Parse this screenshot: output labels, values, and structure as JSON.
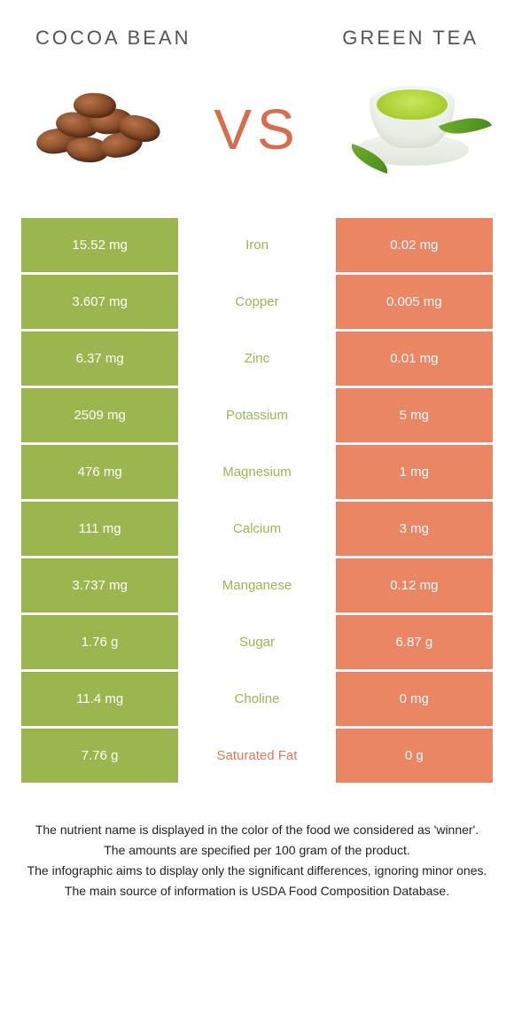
{
  "header": {
    "left_title": "Cocoa bean",
    "right_title": "Green tea"
  },
  "vs_label": "VS",
  "colors": {
    "cocoa": "#9cb64f",
    "green_tea": "#ea8664",
    "nutrient_cocoa_win": "#9cb64f",
    "nutrient_tea_win": "#e07a56",
    "background": "#ffffff"
  },
  "rows": [
    {
      "left": "15.52 mg",
      "nutrient": "Iron",
      "right": "0.02 mg",
      "winner": "cocoa"
    },
    {
      "left": "3.607 mg",
      "nutrient": "Copper",
      "right": "0.005 mg",
      "winner": "cocoa"
    },
    {
      "left": "6.37 mg",
      "nutrient": "Zinc",
      "right": "0.01 mg",
      "winner": "cocoa"
    },
    {
      "left": "2509 mg",
      "nutrient": "Potassium",
      "right": "5 mg",
      "winner": "cocoa"
    },
    {
      "left": "476 mg",
      "nutrient": "Magnesium",
      "right": "1 mg",
      "winner": "cocoa"
    },
    {
      "left": "111 mg",
      "nutrient": "Calcium",
      "right": "3 mg",
      "winner": "cocoa"
    },
    {
      "left": "3.737 mg",
      "nutrient": "Manganese",
      "right": "0.12 mg",
      "winner": "cocoa"
    },
    {
      "left": "1.76 g",
      "nutrient": "Sugar",
      "right": "6.87 g",
      "winner": "cocoa"
    },
    {
      "left": "11.4 mg",
      "nutrient": "Choline",
      "right": "0 mg",
      "winner": "cocoa"
    },
    {
      "left": "7.76 g",
      "nutrient": "Saturated Fat",
      "right": "0 g",
      "winner": "tea"
    }
  ],
  "footnotes": [
    "The nutrient name is displayed in the color of the food we considered as 'winner'.",
    "The amounts are specified per 100 gram of the product.",
    "The infographic aims to display only the significant differences, ignoring minor ones.",
    "The main source of information is USDA Food Composition Database."
  ]
}
